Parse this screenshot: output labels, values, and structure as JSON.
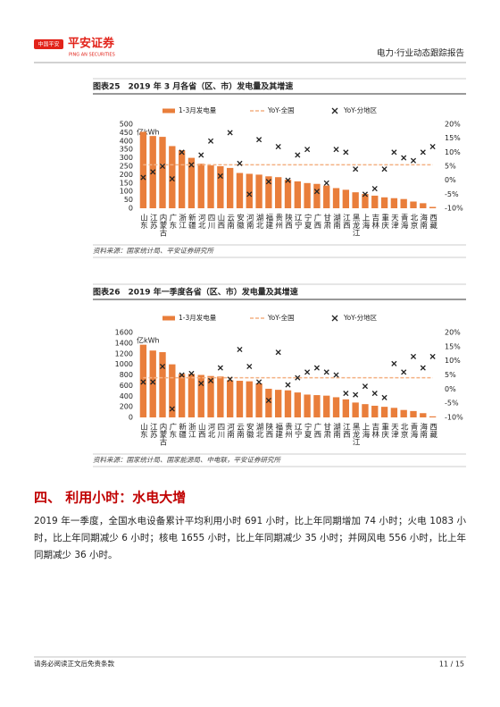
{
  "header": {
    "logo": "中国平安",
    "brand": "平安证券",
    "brand_en": "PING AN SECURITIES",
    "report": "电力·行业动态跟踪报告"
  },
  "chart_data": [
    {
      "type": "bar",
      "title": "图表25　2019 年 3 月各省（区、市）发电量及其增速",
      "y_label": "亿kWh",
      "categories": [
        "山东",
        "江苏",
        "内蒙古",
        "广东",
        "浙江",
        "新疆",
        "河北",
        "四川",
        "山西",
        "云南",
        "安徽",
        "河南",
        "湖北",
        "福建",
        "贵州",
        "陕西",
        "辽宁",
        "宁夏",
        "广西",
        "甘肃",
        "湖南",
        "江西",
        "黑龙江",
        "上海",
        "吉林",
        "重庆",
        "天津",
        "青海",
        "北京",
        "海南",
        "西藏"
      ],
      "series": [
        {
          "name": "1-3月发电量",
          "type": "bar",
          "color": "#e97e3b",
          "values": [
            455,
            430,
            425,
            370,
            345,
            300,
            265,
            255,
            250,
            240,
            210,
            205,
            200,
            190,
            185,
            170,
            160,
            150,
            145,
            135,
            120,
            110,
            95,
            85,
            75,
            65,
            60,
            55,
            40,
            30,
            8
          ]
        },
        {
          "name": "YoY-全国",
          "type": "line",
          "axis": "y2",
          "color": "#f4b183",
          "values": [
            5.5,
            5.5,
            5.5,
            5.5,
            5.5,
            5.5,
            5.5,
            5.5,
            5.5,
            5.5,
            5.5,
            5.5,
            5.5,
            5.5,
            5.5,
            5.5,
            5.5,
            5.5,
            5.5,
            5.5,
            5.5,
            5.5,
            5.5,
            5.5,
            5.5,
            5.5,
            5.5,
            5.5,
            5.5,
            5.5,
            5.5
          ]
        },
        {
          "name": "YoY-分地区",
          "type": "scatter",
          "axis": "y2",
          "color": "#222222",
          "values": [
            1,
            3,
            5,
            0.5,
            10,
            5.5,
            9,
            14,
            1.5,
            17,
            6,
            -5,
            14.5,
            -0.5,
            12,
            0,
            9,
            11,
            -4,
            -1,
            11,
            10,
            4,
            -5,
            -3,
            4,
            10,
            8,
            7,
            10,
            12
          ]
        }
      ],
      "ylim": [
        0,
        500
      ],
      "yticks": [
        0,
        50,
        100,
        150,
        200,
        250,
        300,
        350,
        400,
        450,
        500
      ],
      "y2lim": [
        -10,
        20
      ],
      "y2ticks": [
        {
          "value": -10,
          "label": "-10%"
        },
        {
          "value": -5,
          "label": "-5%"
        },
        {
          "value": 0,
          "label": "0%"
        },
        {
          "value": 5,
          "label": "5%"
        },
        {
          "value": 10,
          "label": "10%"
        },
        {
          "value": 15,
          "label": "15%"
        },
        {
          "value": 20,
          "label": "20%"
        }
      ]
    },
    {
      "type": "bar",
      "title": "图表26　2019 年一季度各省（区、市）发电量及其增速",
      "y_label": "亿kWh",
      "categories": [
        "山东",
        "江苏",
        "内蒙古",
        "广东",
        "新疆",
        "浙江",
        "山西",
        "河北",
        "四川",
        "河南",
        "云南",
        "安徽",
        "湖北",
        "陕西",
        "福建",
        "贵州",
        "辽宁",
        "宁夏",
        "广西",
        "甘肃",
        "湖南",
        "江西",
        "黑龙江",
        "上海",
        "吉林",
        "重庆",
        "天津",
        "北京",
        "青海",
        "海南",
        "西藏"
      ],
      "series": [
        {
          "name": "1-3月发电量",
          "type": "bar",
          "color": "#e97e3b",
          "values": [
            1370,
            1260,
            1230,
            1000,
            820,
            820,
            800,
            780,
            770,
            700,
            690,
            680,
            640,
            540,
            520,
            510,
            470,
            430,
            420,
            410,
            380,
            340,
            280,
            250,
            220,
            200,
            180,
            140,
            120,
            80,
            20
          ]
        },
        {
          "name": "YoY-全国",
          "type": "line",
          "axis": "y2",
          "color": "#f4b183",
          "values": [
            4,
            4,
            4,
            4,
            4,
            4,
            4,
            4,
            4,
            4,
            4,
            4,
            4,
            4,
            4,
            4,
            4,
            4,
            4,
            4,
            4,
            4,
            4,
            4,
            4,
            4,
            4,
            4,
            4,
            4,
            4
          ]
        },
        {
          "name": "YoY-分地区",
          "type": "scatter",
          "axis": "y2",
          "color": "#222222",
          "values": [
            2.5,
            2.5,
            8,
            -7,
            5,
            5.5,
            2,
            3,
            7.5,
            3.5,
            14,
            8,
            2.5,
            -4,
            13,
            1.5,
            4,
            6,
            7.5,
            6,
            5,
            -1.5,
            -2,
            1,
            -1.5,
            -3,
            9,
            6,
            11.5,
            7.5,
            11.5
          ]
        }
      ],
      "ylim": [
        0,
        1600
      ],
      "yticks": [
        0,
        200,
        400,
        600,
        800,
        1000,
        1200,
        1400,
        1600
      ],
      "y2lim": [
        -10,
        20
      ],
      "y2ticks": [
        {
          "value": -10,
          "label": "-10%"
        },
        {
          "value": -5,
          "label": "-5%"
        },
        {
          "value": 0,
          "label": "0%"
        },
        {
          "value": 5,
          "label": "5%"
        },
        {
          "value": 10,
          "label": "10%"
        },
        {
          "value": 15,
          "label": "15%"
        },
        {
          "value": 20,
          "label": "20%"
        }
      ]
    }
  ],
  "sources": [
    "资料来源：国家统计局、平安证券研究所",
    "资料来源：国家统计局、国家能源局、中电联，平安证券研究所"
  ],
  "section": {
    "title": "四、 利用小时：水电大增",
    "paragraph": "2019 年一季度，全国水电设备累计平均利用小时 691 小时，比上年同期增加 74 小时；火电 1083 小时，比上年同期减少 6 小时；核电 1655 小时，比上年同期减少 35 小时；并网风电 556 小时，比上年同期减少 36 小时。"
  },
  "footer": {
    "disclaimer": "请务必阅读正文后免责条款",
    "page": "11 / 15"
  }
}
